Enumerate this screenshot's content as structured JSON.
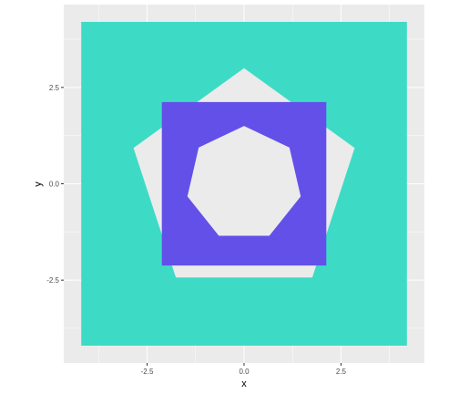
{
  "chart_data": {
    "type": "polygon",
    "xlabel": "x",
    "ylabel": "y",
    "xlim": [
      -4.65,
      4.65
    ],
    "ylim": [
      -4.65,
      4.65
    ],
    "x_ticks": [
      -2.5,
      0.0,
      2.5
    ],
    "x_tick_labels": [
      "-2.5",
      "0.0",
      "2.5"
    ],
    "y_ticks": [
      -2.5,
      0.0,
      2.5
    ],
    "y_tick_labels": [
      "-2.5",
      "0.0",
      "2.5"
    ],
    "grid": true,
    "shapes": [
      {
        "kind": "square",
        "fill": "#3ddbc6",
        "points": [
          [
            -4.2,
            -4.2
          ],
          [
            4.2,
            -4.2
          ],
          [
            4.2,
            4.2
          ],
          [
            -4.2,
            4.2
          ]
        ]
      },
      {
        "kind": "pentagon",
        "fill": "#ebebeb",
        "points": [
          [
            0.0,
            3.0
          ],
          [
            2.85,
            0.93
          ],
          [
            1.76,
            -2.43
          ],
          [
            -1.76,
            -2.43
          ],
          [
            -2.85,
            0.93
          ]
        ]
      },
      {
        "kind": "square",
        "fill": "#6350e8",
        "points": [
          [
            -2.12,
            -2.12
          ],
          [
            2.12,
            -2.12
          ],
          [
            2.12,
            2.12
          ],
          [
            -2.12,
            2.12
          ]
        ]
      },
      {
        "kind": "heptagon",
        "fill": "#ebebeb",
        "points": [
          [
            0.0,
            1.5
          ],
          [
            1.17,
            0.94
          ],
          [
            1.46,
            -0.33
          ],
          [
            0.65,
            -1.35
          ],
          [
            -0.65,
            -1.35
          ],
          [
            -1.46,
            -0.33
          ],
          [
            -1.17,
            0.94
          ]
        ]
      }
    ]
  }
}
